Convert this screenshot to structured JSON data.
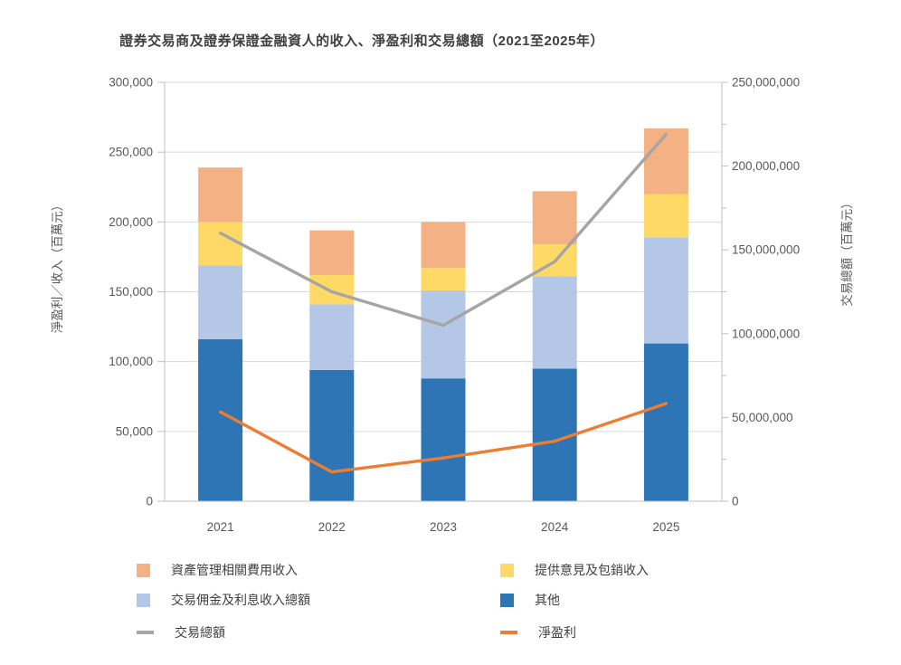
{
  "title": "證券交易商及證券保證金融資人的收入、淨盈利和交易總額（2021至2025年）",
  "chart_data": {
    "type": "combo: stacked bar (left axis) + two lines (dual axes)",
    "categories": [
      "2021",
      "2022",
      "2023",
      "2024",
      "2025"
    ],
    "bar_series": [
      {
        "name": "其他",
        "color": "#2E75B6",
        "values": [
          116000,
          94000,
          88000,
          95000,
          113000
        ]
      },
      {
        "name": "交易佣金及利息收入總額",
        "color": "#B4C7E7",
        "values": [
          53000,
          47000,
          63000,
          66000,
          76000
        ]
      },
      {
        "name": "提供意見及包銷收入",
        "color": "#FFD966",
        "values": [
          31000,
          21000,
          16000,
          23000,
          31000
        ]
      },
      {
        "name": "資產管理相關費用收入",
        "color": "#F4B183",
        "values": [
          39000,
          32000,
          33000,
          38000,
          47000
        ]
      }
    ],
    "bar_totals": [
      239000,
      194000,
      200000,
      222000,
      267000
    ],
    "line_series": [
      {
        "name": "交易總額",
        "color": "#A5A5A5",
        "axis": "right",
        "values": [
          160000000,
          125000000,
          105000000,
          143000000,
          219000000
        ]
      },
      {
        "name": "淨盈利",
        "color": "#ED7D31",
        "axis": "left",
        "values": [
          64000,
          21000,
          31000,
          43000,
          70000
        ]
      }
    ],
    "left_axis": {
      "title": "淨盈利／收入（百萬元）",
      "min": 0,
      "max": 300000,
      "tick_step": 50000,
      "tick_labels": [
        "0",
        "50,000",
        "100,000",
        "150,000",
        "200,000",
        "250,000",
        "300,000"
      ]
    },
    "right_axis": {
      "title": "交易總額（百萬元）",
      "min": 0,
      "max": 250000000,
      "tick_step": 50000000,
      "minor_tick_step": 25000000,
      "tick_labels": [
        "0",
        "50,000,000",
        "100,000,000",
        "150,000,000",
        "200,000,000",
        "250,000,000"
      ]
    },
    "x_axis": {
      "labels": [
        "2021",
        "2022",
        "2023",
        "2024",
        "2025"
      ]
    },
    "grid": "horizontal major gridlines",
    "legend_position": "bottom, two columns"
  },
  "legend": {
    "items": [
      {
        "label": "資產管理相關費用收入",
        "marker": "square",
        "color": "#F4B183"
      },
      {
        "label": "提供意見及包銷收入",
        "marker": "square",
        "color": "#FFD966"
      },
      {
        "label": "交易佣金及利息收入總額",
        "marker": "square",
        "color": "#B4C7E7"
      },
      {
        "label": "其他",
        "marker": "square",
        "color": "#2E75B6"
      },
      {
        "label": "交易總額",
        "marker": "line",
        "color": "#A5A5A5"
      },
      {
        "label": "淨盈利",
        "marker": "line",
        "color": "#ED7D31"
      }
    ]
  },
  "colors": {
    "gridline": "#D9D9D9",
    "axis_line": "#BFBFBF",
    "tick_text": "#595959",
    "title_text": "#404040"
  }
}
